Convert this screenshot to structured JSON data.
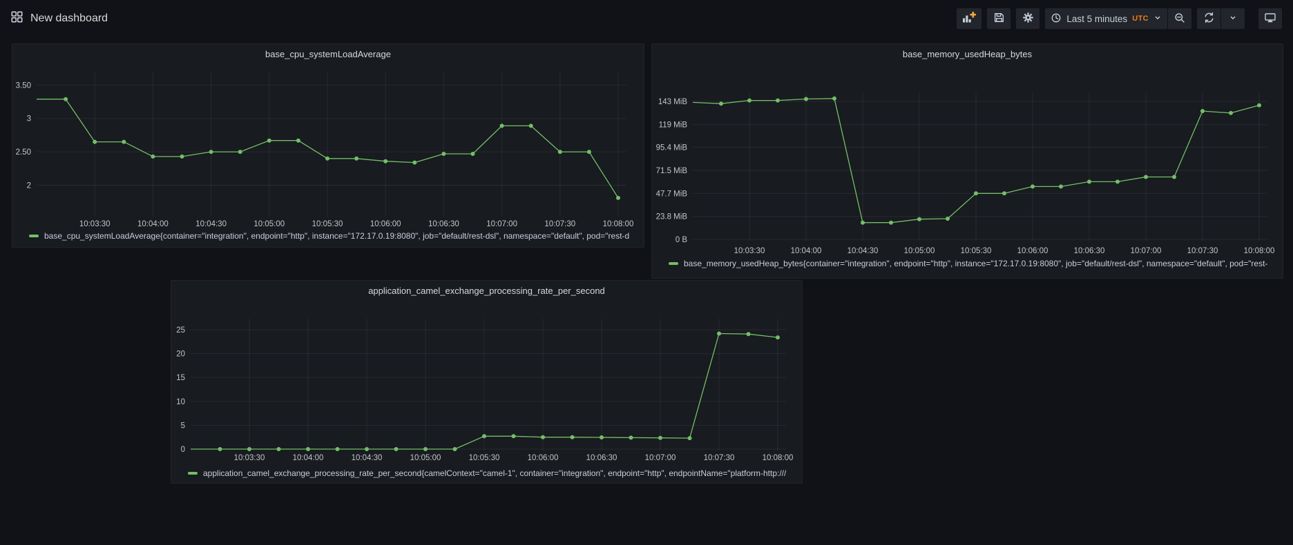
{
  "header": {
    "title": "New dashboard",
    "toolbar": {
      "time_range_label": "Last 5 minutes",
      "timezone": "UTC"
    }
  },
  "colors": {
    "page_bg": "#111217",
    "panel_bg": "#181b1f",
    "series_green": "#73BF69",
    "utc_orange": "#EB7B18",
    "add_panel_plus": "#F2A93B",
    "tick_label": "#c4c6cc",
    "grid_line": "rgba(204,204,220,0.09)"
  },
  "chart_data": [
    {
      "type": "line",
      "title": "base_cpu_systemLoadAverage",
      "legend": "base_cpu_systemLoadAverage{container=\"integration\", endpoint=\"http\", instance=\"172.17.0.19:8080\", job=\"default/rest-dsl\", namespace=\"default\", pod=\"rest-d",
      "series_color": "#73BF69",
      "x": [
        "10:03:00",
        "10:03:15",
        "10:03:30",
        "10:03:45",
        "10:04:00",
        "10:04:15",
        "10:04:30",
        "10:04:45",
        "10:05:00",
        "10:05:15",
        "10:05:30",
        "10:05:45",
        "10:06:00",
        "10:06:15",
        "10:06:30",
        "10:06:45",
        "10:07:00",
        "10:07:15",
        "10:07:30",
        "10:07:45",
        "10:08:00"
      ],
      "values": [
        3.29,
        3.29,
        2.65,
        2.65,
        2.43,
        2.43,
        2.5,
        2.5,
        2.67,
        2.67,
        2.4,
        2.4,
        2.36,
        2.34,
        2.47,
        2.47,
        2.89,
        2.89,
        2.5,
        2.5,
        1.81
      ],
      "x_tick_labels": [
        "10:03:30",
        "10:04:00",
        "10:04:30",
        "10:05:00",
        "10:05:30",
        "10:06:00",
        "10:06:30",
        "10:07:00",
        "10:07:30",
        "10:08:00"
      ],
      "y_ticks": [
        {
          "v": 3.5,
          "label": "3.50"
        },
        {
          "v": 3,
          "label": "3"
        },
        {
          "v": 2.5,
          "label": "2.50"
        },
        {
          "v": 2,
          "label": "2"
        }
      ],
      "ylim": [
        1.53,
        3.7
      ],
      "grid": true,
      "legend_position": "bottom"
    },
    {
      "type": "line",
      "title": "base_memory_usedHeap_bytes",
      "legend": "base_memory_usedHeap_bytes{container=\"integration\", endpoint=\"http\", instance=\"172.17.0.19:8080\", job=\"default/rest-dsl\", namespace=\"default\", pod=\"rest-",
      "series_color": "#73BF69",
      "x": [
        "10:03:00",
        "10:03:15",
        "10:03:30",
        "10:03:45",
        "10:04:00",
        "10:04:15",
        "10:04:30",
        "10:04:45",
        "10:05:00",
        "10:05:15",
        "10:05:30",
        "10:05:45",
        "10:06:00",
        "10:06:15",
        "10:06:30",
        "10:06:45",
        "10:07:00",
        "10:07:15",
        "10:07:30",
        "10:07:45",
        "10:08:00"
      ],
      "values": [
        142,
        140.7,
        144,
        144,
        145.5,
        146,
        17.4,
        17.4,
        21,
        21.5,
        47.7,
        47.7,
        54.8,
        54.8,
        59.8,
        59.8,
        64.7,
        64.7,
        133,
        131,
        139
      ],
      "x_tick_labels": [
        "10:03:30",
        "10:04:00",
        "10:04:30",
        "10:05:00",
        "10:05:30",
        "10:06:00",
        "10:06:30",
        "10:07:00",
        "10:07:30",
        "10:08:00"
      ],
      "y_ticks": [
        {
          "v": 143,
          "label": "143 MiB"
        },
        {
          "v": 119,
          "label": "119 MiB"
        },
        {
          "v": 95.4,
          "label": "95.4 MiB"
        },
        {
          "v": 71.5,
          "label": "71.5 MiB"
        },
        {
          "v": 47.7,
          "label": "47.7 MiB"
        },
        {
          "v": 23.8,
          "label": "23.8 MiB"
        },
        {
          "v": 0,
          "label": "0 B"
        }
      ],
      "ylim": [
        -1.4,
        152.3
      ],
      "grid": true,
      "legend_position": "bottom"
    },
    {
      "type": "line",
      "title": "application_camel_exchange_processing_rate_per_second",
      "legend": "application_camel_exchange_processing_rate_per_second{camelContext=\"camel-1\", container=\"integration\", endpoint=\"http\", endpointName=\"platform-http:///",
      "series_color": "#73BF69",
      "x": [
        "10:03:00",
        "10:03:15",
        "10:03:30",
        "10:03:45",
        "10:04:00",
        "10:04:15",
        "10:04:30",
        "10:04:45",
        "10:05:00",
        "10:05:15",
        "10:05:30",
        "10:05:45",
        "10:06:00",
        "10:06:15",
        "10:06:30",
        "10:06:45",
        "10:07:00",
        "10:07:15",
        "10:07:30",
        "10:07:45",
        "10:08:00"
      ],
      "values": [
        0,
        0,
        0,
        0,
        0,
        0,
        0,
        0,
        0,
        0,
        2.7,
        2.7,
        2.5,
        2.5,
        2.45,
        2.4,
        2.35,
        2.3,
        24.2,
        24.1,
        23.4
      ],
      "x_tick_labels": [
        "10:03:30",
        "10:04:00",
        "10:04:30",
        "10:05:00",
        "10:05:30",
        "10:06:00",
        "10:06:30",
        "10:07:00",
        "10:07:30",
        "10:08:00"
      ],
      "y_ticks": [
        {
          "v": 25,
          "label": "25"
        },
        {
          "v": 20,
          "label": "20"
        },
        {
          "v": 15,
          "label": "15"
        },
        {
          "v": 10,
          "label": "10"
        },
        {
          "v": 5,
          "label": "5"
        },
        {
          "v": 0,
          "label": "0"
        }
      ],
      "ylim": [
        -0.29,
        27.31
      ],
      "grid": true,
      "legend_position": "bottom"
    }
  ]
}
